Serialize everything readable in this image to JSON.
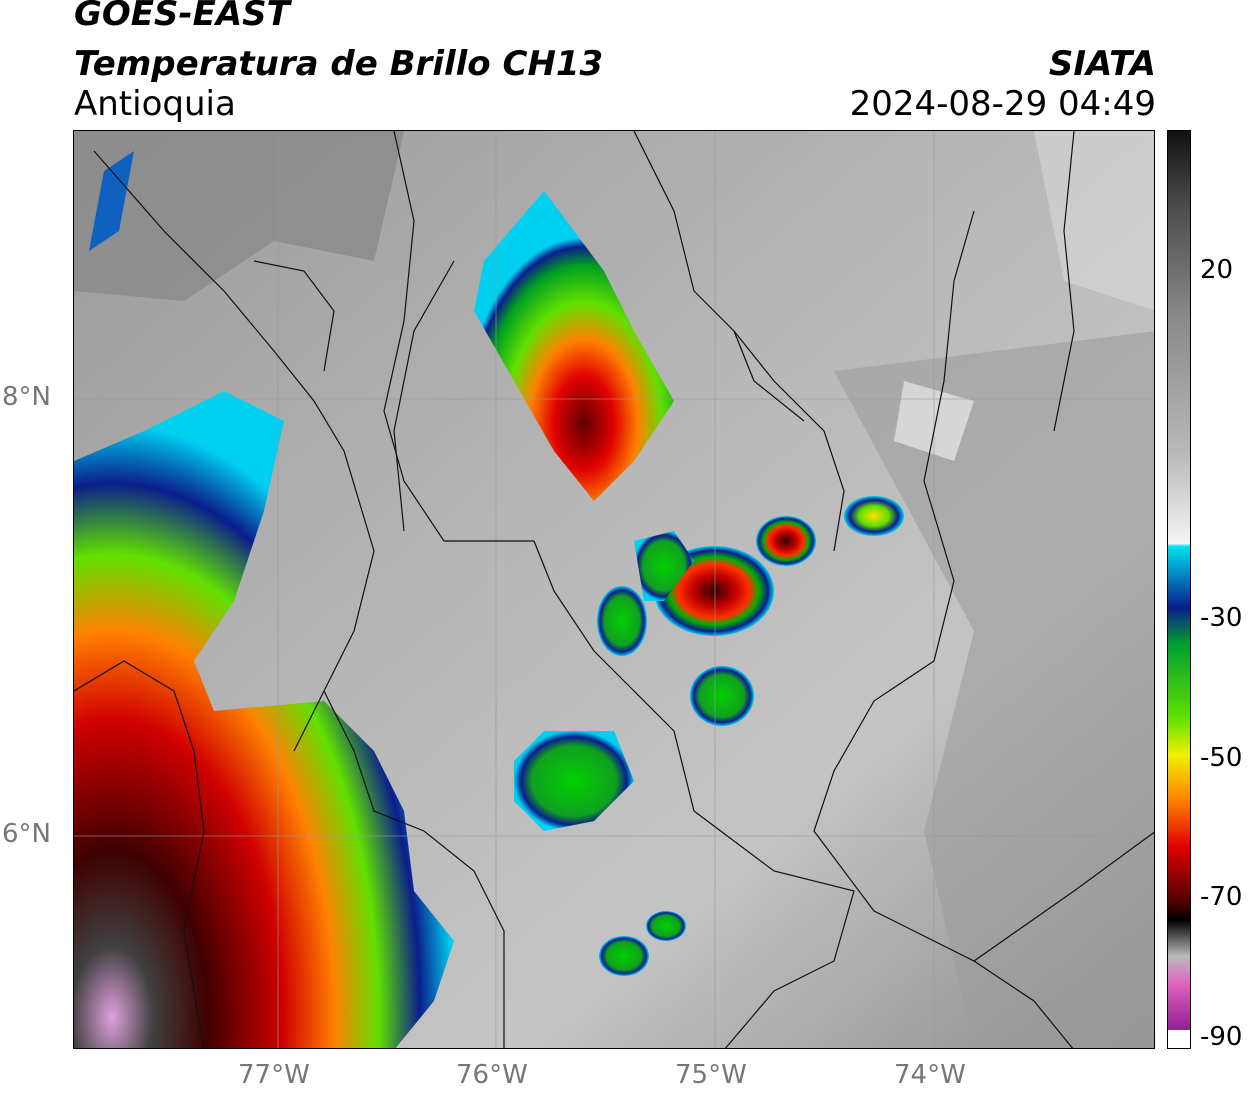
{
  "header": {
    "title_line1": "GOES-EAST",
    "title_line2": "Temperatura de Brillo CH13",
    "region": "Antioquia",
    "organization": "SIATA",
    "timestamp": "2024-08-29 04:49"
  },
  "map": {
    "lon_ticks": [
      "77°W",
      "76°W",
      "75°W",
      "74°W"
    ],
    "lat_ticks": [
      "8°N",
      "6°N"
    ],
    "grid": true
  },
  "colorbar": {
    "ticks": [
      "20",
      "-30",
      "-50",
      "-70",
      "-90"
    ],
    "colors": {
      "warm_gray_top": "#1a1a1a",
      "mid_gray": "#8a8a8a",
      "light": "#f2f2f2",
      "cyan": "#00e0f0",
      "blue": "#0a1e8c",
      "green": "#00c000",
      "yellow": "#f0f000",
      "orange": "#ff8000",
      "red": "#e00000",
      "dark_red": "#500000",
      "black": "#000000",
      "pink": "#e060c0",
      "purple": "#902090",
      "white": "#ffffff"
    }
  }
}
